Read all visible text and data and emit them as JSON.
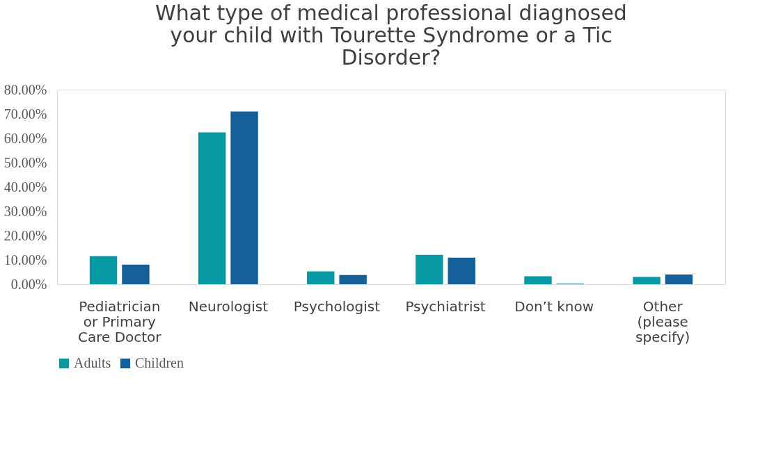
{
  "chart_data": {
    "type": "bar",
    "title": "What type of medical professional diagnosed your child with Tourette Syndrome or a Tic Disorder?",
    "categories": [
      "Pediatrician or Primary Care Doctor",
      "Neurologist",
      "Psychologist",
      "Psychiatrist",
      "Don’t know",
      "Other (please specify)"
    ],
    "series": [
      {
        "name": "Adults",
        "color": "#0799a3",
        "values": [
          11.6,
          62.4,
          5.3,
          12.1,
          3.3,
          3.0
        ]
      },
      {
        "name": "Children",
        "color": "#156099",
        "values": [
          8.1,
          71.0,
          3.8,
          10.9,
          0.2,
          4.0
        ]
      }
    ],
    "ylim": [
      0,
      80
    ],
    "yticks": [
      {
        "value": 0,
        "label": "0.00%"
      },
      {
        "value": 10,
        "label": "10.00%"
      },
      {
        "value": 20,
        "label": "20.00%"
      },
      {
        "value": 30,
        "label": "30.00%"
      },
      {
        "value": 40,
        "label": "40.00%"
      },
      {
        "value": 50,
        "label": "50.00%"
      },
      {
        "value": 60,
        "label": "60.00%"
      },
      {
        "value": 70,
        "label": "70.00%"
      },
      {
        "value": 80,
        "label": "80.00%"
      }
    ],
    "grid": false,
    "legend": "bottom"
  }
}
